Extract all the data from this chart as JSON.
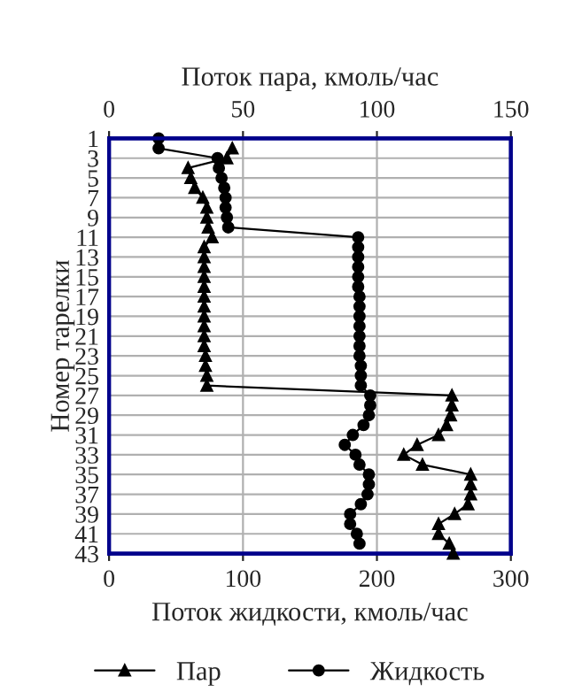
{
  "chart_data": {
    "type": "line",
    "orientation": "horizontal",
    "xlabel": "Поток жидкости, кмоль/час",
    "x2label": "Поток пара, кмоль/час",
    "ylabel": "Номер тарелки",
    "xlim": [
      0,
      300
    ],
    "xticks": [
      0,
      100,
      200,
      300
    ],
    "x2lim": [
      0,
      150
    ],
    "x2ticks": [
      0,
      50,
      100,
      150
    ],
    "ylim": [
      43,
      1
    ],
    "yticks": [
      1,
      3,
      5,
      7,
      9,
      11,
      13,
      15,
      17,
      19,
      21,
      23,
      25,
      27,
      29,
      31,
      33,
      35,
      37,
      39,
      41,
      43
    ],
    "grid": true,
    "legend": "bottom",
    "line_style": "solid",
    "series": [
      {
        "name": "Пар",
        "color": "#000000",
        "marker": "triangle",
        "axis": "x2",
        "x": [
          2,
          3,
          4,
          5,
          6,
          7,
          8,
          9,
          10,
          11,
          12,
          13,
          14,
          15,
          16,
          17,
          18,
          19,
          20,
          21,
          22,
          23,
          24,
          25,
          26,
          27,
          28,
          29,
          30,
          31,
          32,
          33,
          34,
          35,
          36,
          37,
          38,
          39,
          40,
          41,
          42,
          43
        ],
        "values": [
          46,
          44,
          29.5,
          30.5,
          32,
          35,
          36.5,
          36.5,
          37,
          38.5,
          35.5,
          35.5,
          35.5,
          35.5,
          35.5,
          35.5,
          35.5,
          35.5,
          35.5,
          35.5,
          35.5,
          36,
          36,
          36.5,
          36.5,
          128,
          128,
          127.5,
          126,
          123,
          115,
          110,
          117,
          135,
          135,
          135,
          134,
          129,
          123,
          123,
          127,
          128.5
        ]
      },
      {
        "name": "Жидкость",
        "color": "#000000",
        "marker": "circle",
        "x": [
          1,
          2,
          3,
          4,
          5,
          6,
          7,
          8,
          9,
          10,
          11,
          12,
          13,
          14,
          15,
          16,
          17,
          18,
          19,
          20,
          21,
          22,
          23,
          24,
          25,
          26,
          27,
          28,
          29,
          30,
          31,
          32,
          33,
          34,
          35,
          36,
          37,
          38,
          39,
          40,
          41,
          42
        ],
        "values": [
          37,
          37,
          81,
          82,
          84,
          86,
          87,
          87,
          88,
          89,
          186,
          186,
          186,
          186,
          186,
          186,
          187,
          187,
          187,
          187,
          187,
          187,
          187,
          188,
          188,
          188,
          195,
          195,
          194,
          190,
          182,
          176,
          184,
          187,
          194,
          194,
          193,
          188,
          180,
          180,
          185,
          187
        ]
      }
    ]
  }
}
